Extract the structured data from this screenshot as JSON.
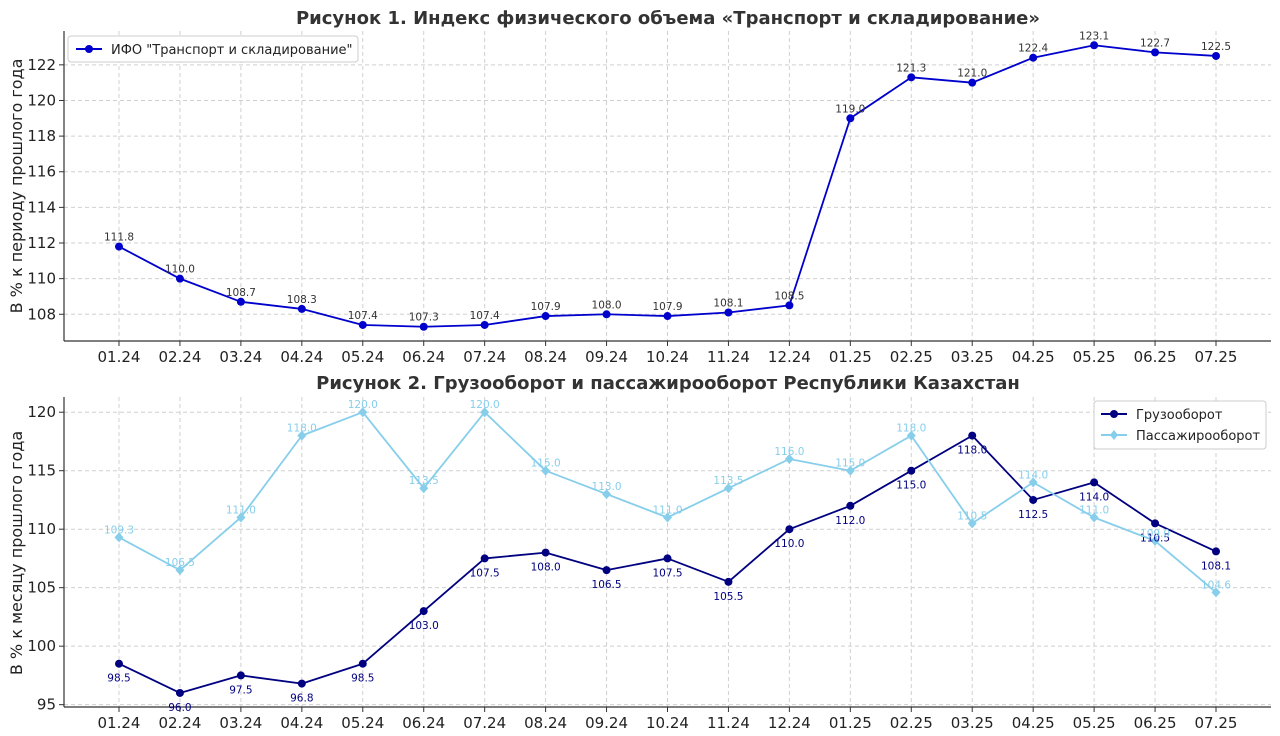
{
  "chart_data": [
    {
      "type": "line",
      "title": "Рисунок 1. Индекс физического объема «Транспорт и складирование»",
      "ylabel": "В % к периоду прошлого года",
      "xlabel": "",
      "categories": [
        "01.24",
        "02.24",
        "03.24",
        "04.24",
        "05.24",
        "06.24",
        "07.24",
        "08.24",
        "09.24",
        "10.24",
        "11.24",
        "12.24",
        "01.25",
        "02.25",
        "03.25",
        "04.25",
        "05.25",
        "06.25",
        "07.25"
      ],
      "ylim": [
        106.5,
        123.9
      ],
      "yticks": [
        108,
        110,
        112,
        114,
        116,
        118,
        120,
        122
      ],
      "grid": true,
      "legend_position": "top-left",
      "series": [
        {
          "name": "ИФО \"Транспорт и складирование\"",
          "color": "#0000cc",
          "label_color": "#333333",
          "marker": "circle",
          "values": [
            111.8,
            110.0,
            108.7,
            108.3,
            107.4,
            107.3,
            107.4,
            107.9,
            108.0,
            107.9,
            108.1,
            108.5,
            119.0,
            121.3,
            121.0,
            122.4,
            123.1,
            122.7,
            122.5
          ],
          "labels": [
            "111.8",
            "110.0",
            "108.7",
            "108.3",
            "107.4",
            "107.3",
            "107.4",
            "107.9",
            "108.0",
            "107.9",
            "108.1",
            "108.5",
            "119.0",
            "121.3",
            "121.0",
            "122.4",
            "123.1",
            "122.7",
            "122.5"
          ],
          "label_side": "above"
        }
      ]
    },
    {
      "type": "line",
      "title": "Рисунок 2. Грузооборот и пассажирооборот Республики Казахстан",
      "ylabel": "В % к месяцу прошлого года",
      "xlabel": "",
      "categories": [
        "01.24",
        "02.24",
        "03.24",
        "04.24",
        "05.24",
        "06.24",
        "07.24",
        "08.24",
        "09.24",
        "10.24",
        "11.24",
        "12.24",
        "01.25",
        "02.25",
        "03.25",
        "04.25",
        "05.25",
        "06.25",
        "07.25"
      ],
      "ylim": [
        94.8,
        121.3
      ],
      "yticks": [
        95,
        100,
        105,
        110,
        115,
        120
      ],
      "grid": true,
      "legend_position": "top-right",
      "series": [
        {
          "name": "Грузооборот",
          "color": "#000080",
          "label_color": "#000080",
          "marker": "circle",
          "values": [
            98.5,
            96.0,
            97.5,
            96.8,
            98.5,
            103.0,
            107.5,
            108.0,
            106.5,
            107.5,
            105.5,
            110.0,
            112.0,
            115.0,
            118.0,
            112.5,
            114.0,
            110.5,
            108.1
          ],
          "labels": [
            "98.5",
            "96.0",
            "97.5",
            "96.8",
            "98.5",
            "103.0",
            "107.5",
            "108.0",
            "106.5",
            "107.5",
            "105.5",
            "110.0",
            "112.0",
            "115.0",
            "118.0",
            "112.5",
            "114.0",
            "110.5",
            "108.1"
          ],
          "label_side": "below"
        },
        {
          "name": "Пассажирооборот",
          "color": "#87ceeb",
          "label_color": "#87ceeb",
          "marker": "diamond",
          "values": [
            109.3,
            106.5,
            111.0,
            118.0,
            120.0,
            113.5,
            120.0,
            115.0,
            113.0,
            111.0,
            113.5,
            116.0,
            115.0,
            118.0,
            110.5,
            114.0,
            111.0,
            109.0,
            104.6
          ],
          "labels": [
            "109.3",
            "106.5",
            "111.0",
            "118.0",
            "120.0",
            "113.5",
            "120.0",
            "115.0",
            "113.0",
            "111.0",
            "113.5",
            "116.0",
            "115.0",
            "118.0",
            "110.5",
            "114.0",
            "111.0",
            "109.0",
            "104.6"
          ],
          "label_side": "on"
        }
      ]
    }
  ]
}
